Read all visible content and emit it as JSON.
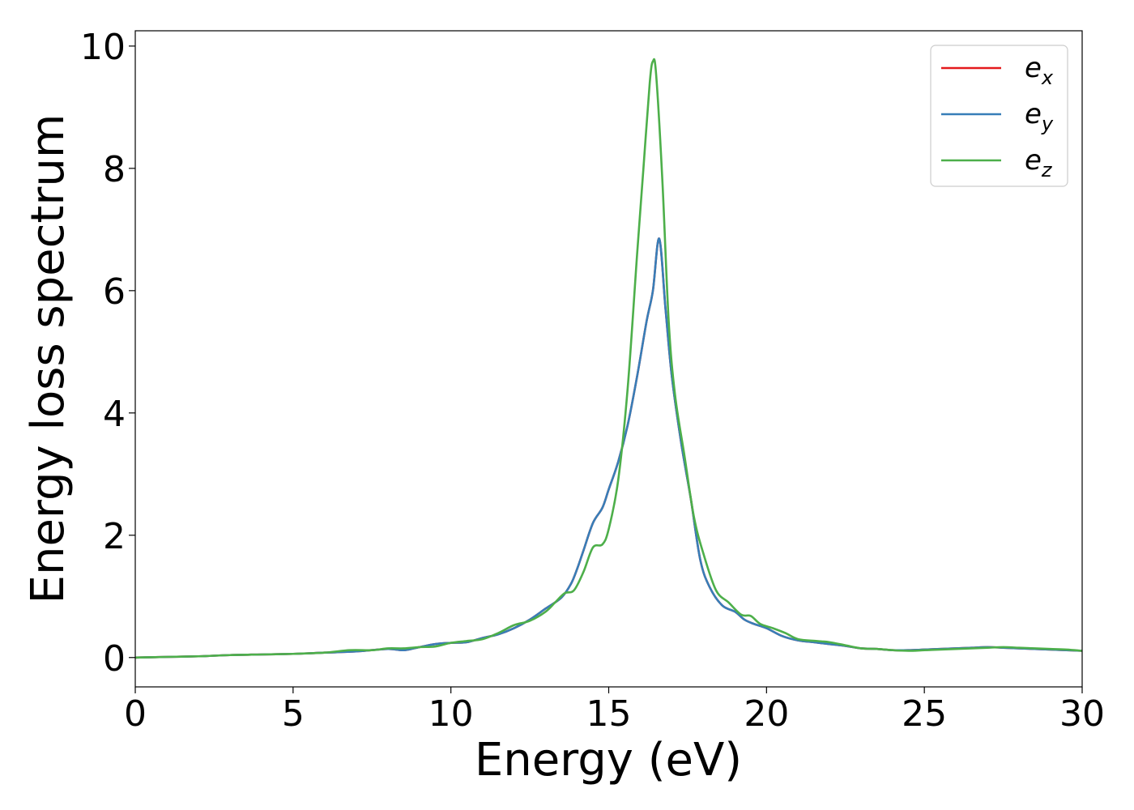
{
  "chart_data": {
    "type": "line",
    "title": "",
    "xlabel": "Energy (eV)",
    "ylabel": "Energy loss spectrum",
    "xlim": [
      0,
      30
    ],
    "ylim": [
      -0.48,
      10.25
    ],
    "xticks": [
      0,
      5,
      10,
      15,
      20,
      25,
      30
    ],
    "yticks": [
      0,
      2,
      4,
      6,
      8,
      10
    ],
    "xtick_labels": [
      "0",
      "5",
      "10",
      "15",
      "20",
      "25",
      "30"
    ],
    "ytick_labels": [
      "0",
      "2",
      "4",
      "6",
      "8",
      "10"
    ],
    "grid": false,
    "legend_position": "top-right",
    "series": [
      {
        "base": "e",
        "sub": "x",
        "color": "#e41a1c",
        "x": [
          0,
          1,
          2,
          3,
          4,
          5,
          6,
          7,
          8,
          8.5,
          9,
          9.5,
          10,
          10.5,
          11,
          11.5,
          12,
          12.5,
          13,
          13.5,
          13.8,
          14,
          14.2,
          14.5,
          14.8,
          15,
          15.3,
          15.6,
          15.9,
          16.2,
          16.4,
          16.6,
          16.8,
          17,
          17.3,
          17.6,
          17.9,
          18.2,
          18.6,
          19,
          19.3,
          19.6,
          20,
          20.5,
          21,
          21.5,
          22,
          22.5,
          23,
          23.5,
          24,
          24.5,
          25,
          25.5,
          26,
          26.5,
          27,
          27.5,
          28,
          28.5,
          29,
          29.5,
          30
        ],
        "y": [
          0,
          0.01,
          0.02,
          0.04,
          0.05,
          0.06,
          0.08,
          0.1,
          0.14,
          0.12,
          0.17,
          0.22,
          0.24,
          0.25,
          0.32,
          0.38,
          0.48,
          0.62,
          0.8,
          0.98,
          1.2,
          1.45,
          1.75,
          2.2,
          2.45,
          2.75,
          3.2,
          3.8,
          4.6,
          5.5,
          6.0,
          6.85,
          5.7,
          4.6,
          3.5,
          2.6,
          1.6,
          1.15,
          0.85,
          0.75,
          0.62,
          0.55,
          0.48,
          0.35,
          0.28,
          0.25,
          0.22,
          0.19,
          0.15,
          0.14,
          0.12,
          0.12,
          0.13,
          0.14,
          0.15,
          0.16,
          0.17,
          0.16,
          0.15,
          0.14,
          0.13,
          0.12,
          0.11
        ]
      },
      {
        "base": "e",
        "sub": "y",
        "color": "#377eb8",
        "x": [
          0,
          1,
          2,
          3,
          4,
          5,
          6,
          7,
          8,
          8.5,
          9,
          9.5,
          10,
          10.5,
          11,
          11.5,
          12,
          12.5,
          13,
          13.5,
          13.8,
          14,
          14.2,
          14.5,
          14.8,
          15,
          15.3,
          15.6,
          15.9,
          16.2,
          16.4,
          16.6,
          16.8,
          17,
          17.3,
          17.6,
          17.9,
          18.2,
          18.6,
          19,
          19.3,
          19.6,
          20,
          20.5,
          21,
          21.5,
          22,
          22.5,
          23,
          23.5,
          24,
          24.5,
          25,
          25.5,
          26,
          26.5,
          27,
          27.5,
          28,
          28.5,
          29,
          29.5,
          30
        ],
        "y": [
          0,
          0.01,
          0.02,
          0.04,
          0.05,
          0.06,
          0.08,
          0.1,
          0.14,
          0.12,
          0.17,
          0.22,
          0.24,
          0.25,
          0.32,
          0.38,
          0.48,
          0.62,
          0.8,
          0.98,
          1.2,
          1.45,
          1.75,
          2.2,
          2.45,
          2.75,
          3.2,
          3.8,
          4.6,
          5.5,
          6.0,
          6.85,
          5.7,
          4.6,
          3.5,
          2.6,
          1.6,
          1.15,
          0.85,
          0.75,
          0.62,
          0.55,
          0.48,
          0.35,
          0.28,
          0.25,
          0.22,
          0.19,
          0.15,
          0.14,
          0.12,
          0.12,
          0.13,
          0.14,
          0.15,
          0.16,
          0.17,
          0.16,
          0.15,
          0.14,
          0.13,
          0.12,
          0.11
        ]
      },
      {
        "base": "e",
        "sub": "z",
        "color": "#4daf4a",
        "x": [
          0,
          1,
          2,
          3,
          4,
          5,
          6,
          6.8,
          7.5,
          8,
          8.5,
          9,
          9.5,
          10,
          10.5,
          11,
          11.5,
          12,
          12.5,
          13,
          13.3,
          13.6,
          13.9,
          14.2,
          14.5,
          14.8,
          15,
          15.3,
          15.6,
          15.9,
          16.1,
          16.3,
          16.4,
          16.5,
          16.7,
          16.9,
          17.1,
          17.4,
          17.7,
          18,
          18.4,
          18.8,
          19.2,
          19.5,
          19.8,
          20.2,
          20.6,
          21,
          21.6,
          22,
          22.5,
          23,
          23.5,
          24,
          24.5,
          25,
          25.5,
          26,
          26.5,
          27,
          27.5,
          28,
          28.5,
          29,
          29.5,
          30
        ],
        "y": [
          0,
          0.01,
          0.02,
          0.04,
          0.05,
          0.06,
          0.08,
          0.12,
          0.12,
          0.15,
          0.15,
          0.17,
          0.18,
          0.24,
          0.27,
          0.3,
          0.4,
          0.53,
          0.6,
          0.75,
          0.9,
          1.05,
          1.1,
          1.4,
          1.8,
          1.85,
          2.1,
          2.9,
          4.4,
          6.6,
          8.0,
          9.4,
          9.75,
          9.55,
          7.8,
          5.5,
          4.3,
          3.3,
          2.3,
          1.7,
          1.1,
          0.9,
          0.7,
          0.68,
          0.55,
          0.48,
          0.4,
          0.3,
          0.27,
          0.25,
          0.2,
          0.15,
          0.14,
          0.12,
          0.11,
          0.12,
          0.13,
          0.14,
          0.15,
          0.16,
          0.17,
          0.16,
          0.15,
          0.14,
          0.13,
          0.11
        ]
      }
    ]
  }
}
